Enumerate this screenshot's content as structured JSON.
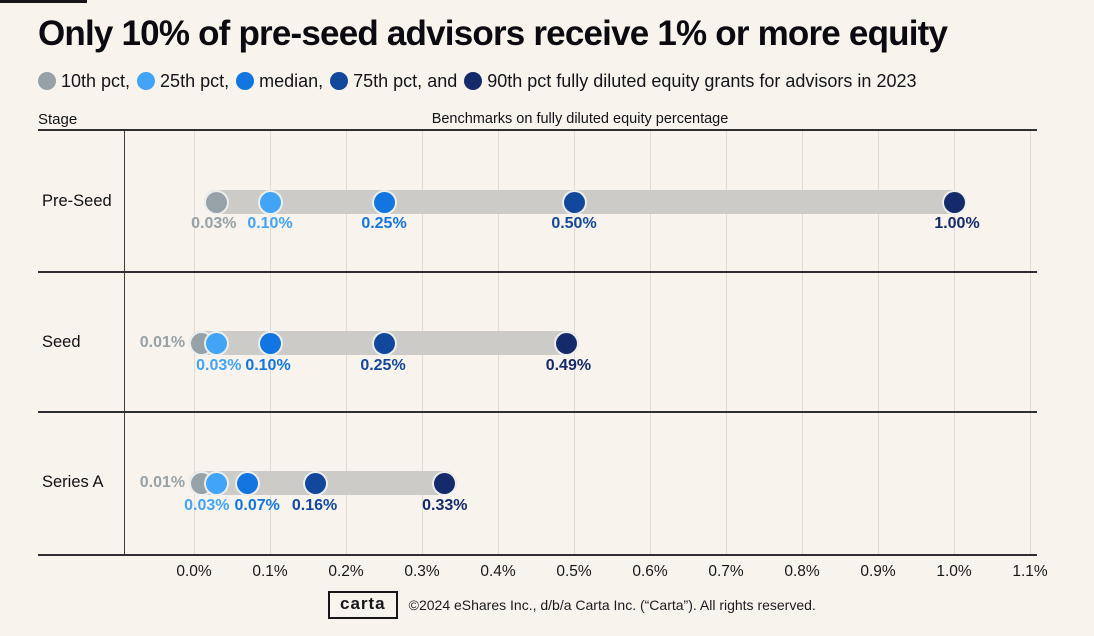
{
  "title": "Only 10% of pre-seed advisors receive 1% or more equity",
  "legend": {
    "segments": [
      {
        "label": "10th pct,",
        "color": "#96a1a8"
      },
      {
        "label": "25th pct,",
        "color": "#41a4f6"
      },
      {
        "label": "median,",
        "color": "#1375e0"
      },
      {
        "label": "75th pct, and",
        "color": "#12489c"
      },
      {
        "label": "90th pct fully diluted equity grants for advisors in 2023",
        "color": "#152a6b"
      }
    ]
  },
  "table": {
    "stage_header": "Stage",
    "benchmarks_header": "Benchmarks on fully diluted equity percentage"
  },
  "chart_data": {
    "type": "scatter",
    "title": "Only 10% of pre-seed advisors receive 1% or more equity",
    "xlabel": "Benchmarks on fully diluted equity percentage",
    "ylabel": "Stage",
    "xlim": [
      0.0,
      1.1
    ],
    "grid": true,
    "x_ticks": [
      "0.0%",
      "0.1%",
      "0.2%",
      "0.3%",
      "0.4%",
      "0.5%",
      "0.6%",
      "0.7%",
      "0.8%",
      "0.9%",
      "1.0%",
      "1.1%"
    ],
    "percentiles": [
      "10th pct",
      "25th pct",
      "median",
      "75th pct",
      "90th pct"
    ],
    "percentile_colors": [
      "#96a1a8",
      "#41a4f6",
      "#1375e0",
      "#12489c",
      "#152a6b"
    ],
    "bar_color": "#cccbc8",
    "rows": [
      {
        "stage": "Pre-Seed",
        "values": [
          0.03,
          0.1,
          0.25,
          0.5,
          1.0
        ],
        "labels": [
          "0.03%",
          "0.10%",
          "0.25%",
          "0.50%",
          "1.00%"
        ],
        "p10_label_outside": false
      },
      {
        "stage": "Seed",
        "values": [
          0.01,
          0.03,
          0.1,
          0.25,
          0.49
        ],
        "labels": [
          "0.01%",
          "0.03%",
          "0.10%",
          "0.25%",
          "0.49%"
        ],
        "p10_label_outside": true
      },
      {
        "stage": "Series A",
        "values": [
          0.01,
          0.03,
          0.07,
          0.16,
          0.33
        ],
        "labels": [
          "0.01%",
          "0.03%",
          "0.07%",
          "0.16%",
          "0.33%"
        ],
        "p10_label_outside": true
      }
    ]
  },
  "footer": {
    "logo_text": "carta",
    "copyright": "©2024 eShares Inc., d/b/a Carta Inc. (“Carta”). All rights reserved."
  }
}
